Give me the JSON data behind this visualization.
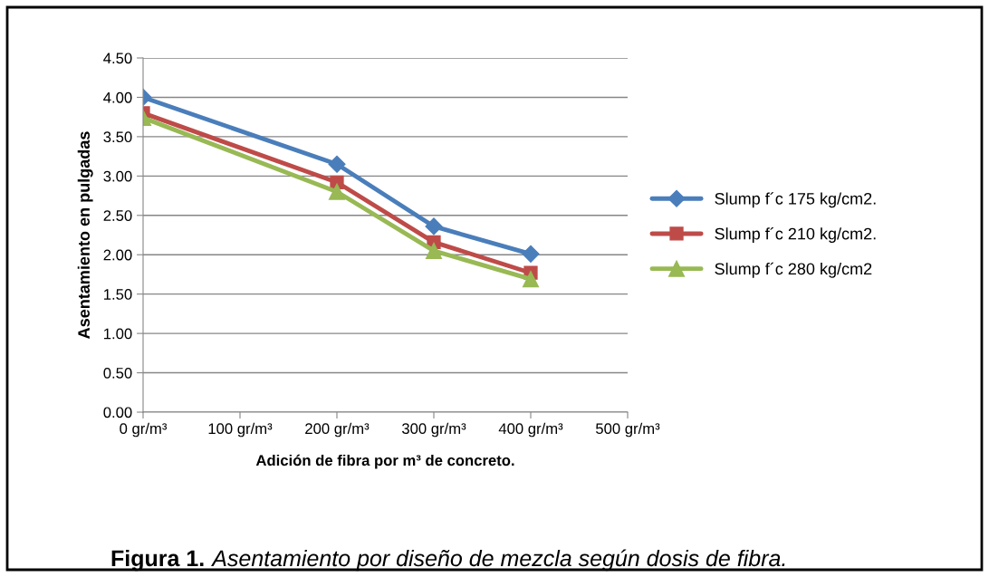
{
  "chart_data": {
    "type": "line",
    "xlabel": "Adición de fibra por m³ de concreto.",
    "ylabel": "Asentamiento en pulgadas",
    "x": [
      0,
      200,
      300,
      400
    ],
    "series": [
      {
        "name": "Slump f´c 175 kg/cm2.",
        "color": "#4a7ebb",
        "marker": "diamond",
        "values": [
          4.0,
          3.15,
          2.36,
          2.01
        ]
      },
      {
        "name": "Slump f´c 210 kg/cm2.",
        "color": "#be4b48",
        "marker": "square",
        "values": [
          3.8,
          2.92,
          2.16,
          1.77
        ]
      },
      {
        "name": "Slump f´c 280 kg/cm2",
        "color": "#98b954",
        "marker": "triangle",
        "values": [
          3.74,
          2.8,
          2.05,
          1.69
        ]
      }
    ],
    "xlim": [
      0,
      500
    ],
    "xticks": [
      {
        "value": 0,
        "label": "0 gr/m³"
      },
      {
        "value": 100,
        "label": "100 gr/m³"
      },
      {
        "value": 200,
        "label": "200 gr/m³"
      },
      {
        "value": 300,
        "label": "300 gr/m³"
      },
      {
        "value": 400,
        "label": "400 gr/m³"
      },
      {
        "value": 500,
        "label": "500 gr/m³"
      }
    ],
    "ylim": [
      0,
      4.5
    ],
    "yticks": [
      {
        "value": 0,
        "label": "0.00"
      },
      {
        "value": 0.5,
        "label": "0.50"
      },
      {
        "value": 1,
        "label": "1.00"
      },
      {
        "value": 1.5,
        "label": "1.50"
      },
      {
        "value": 2,
        "label": "2.00"
      },
      {
        "value": 2.5,
        "label": "2.50"
      },
      {
        "value": 3,
        "label": "3.00"
      },
      {
        "value": 3.5,
        "label": "3.50"
      },
      {
        "value": 4,
        "label": "4.00"
      },
      {
        "value": 4.5,
        "label": "4.50"
      }
    ],
    "grid": "y",
    "legend": "right",
    "line_style": "solid",
    "annotations": [
      "Figura 1.",
      "Asentamiento por diseño de mezcla según dosis de fibra."
    ]
  }
}
